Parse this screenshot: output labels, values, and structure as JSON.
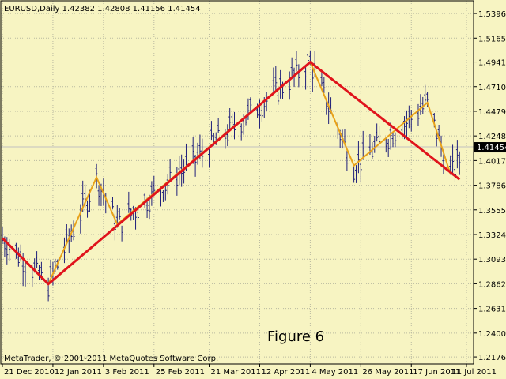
{
  "window": {
    "header": "EURUSD,Daily  1.42382 1.42808 1.41156 1.41454",
    "copyright": "MetaTrader, © 2001-2011 MetaQuotes Software Corp.",
    "figure_label": "Figure 6"
  },
  "colors": {
    "background": "#f7f4c2",
    "frame": "#000000",
    "grid": "#b9b9a0",
    "candle": "#1f1f7a",
    "zigzag_major": "#e0141c",
    "zigzag_minor": "#e8a21a",
    "price_tag_bg": "#000000",
    "price_tag_fg": "#ffffff"
  },
  "chart_data": {
    "type": "line",
    "symbol": "EURUSD",
    "timeframe": "Daily",
    "ohlc_last": {
      "open": 1.42382,
      "high": 1.42808,
      "low": 1.41156,
      "close": 1.41454
    },
    "current_price_label": "1.41454",
    "ylim": [
      1.211,
      1.5515
    ],
    "y_ticks": [
      "1.53960",
      "1.51650",
      "1.49410",
      "1.47100",
      "1.44790",
      "1.42480",
      "1.40170",
      "1.37860",
      "1.35550",
      "1.33240",
      "1.30930",
      "1.28620",
      "1.26310",
      "1.24000",
      "1.21760"
    ],
    "x_ticks": [
      "21 Dec 2010",
      "12 Jan 2011",
      "3 Feb 2011",
      "25 Feb 2011",
      "21 Mar 2011",
      "12 Apr 2011",
      "4 May 2011",
      "26 May 2011",
      "17 Jun 2011",
      "11 Jul 2011"
    ],
    "grid": true,
    "series": [
      {
        "type": "zigzag-major",
        "points": [
          {
            "x": "2010-12-21",
            "y": 1.329
          },
          {
            "x": "2011-01-10",
            "y": 1.286
          },
          {
            "x": "2011-05-04",
            "y": 1.494
          },
          {
            "x": "2011-07-08",
            "y": 1.384
          }
        ]
      },
      {
        "type": "zigzag-minor",
        "points": [
          {
            "x": "2011-01-10",
            "y": 1.286
          },
          {
            "x": "2011-01-31",
            "y": 1.386
          },
          {
            "x": "2011-02-09",
            "y": 1.342
          },
          {
            "x": "2011-05-04",
            "y": 1.494
          },
          {
            "x": "2011-05-23",
            "y": 1.397
          },
          {
            "x": "2011-06-24",
            "y": 1.456
          },
          {
            "x": "2011-07-04",
            "y": 1.389
          }
        ]
      }
    ]
  }
}
